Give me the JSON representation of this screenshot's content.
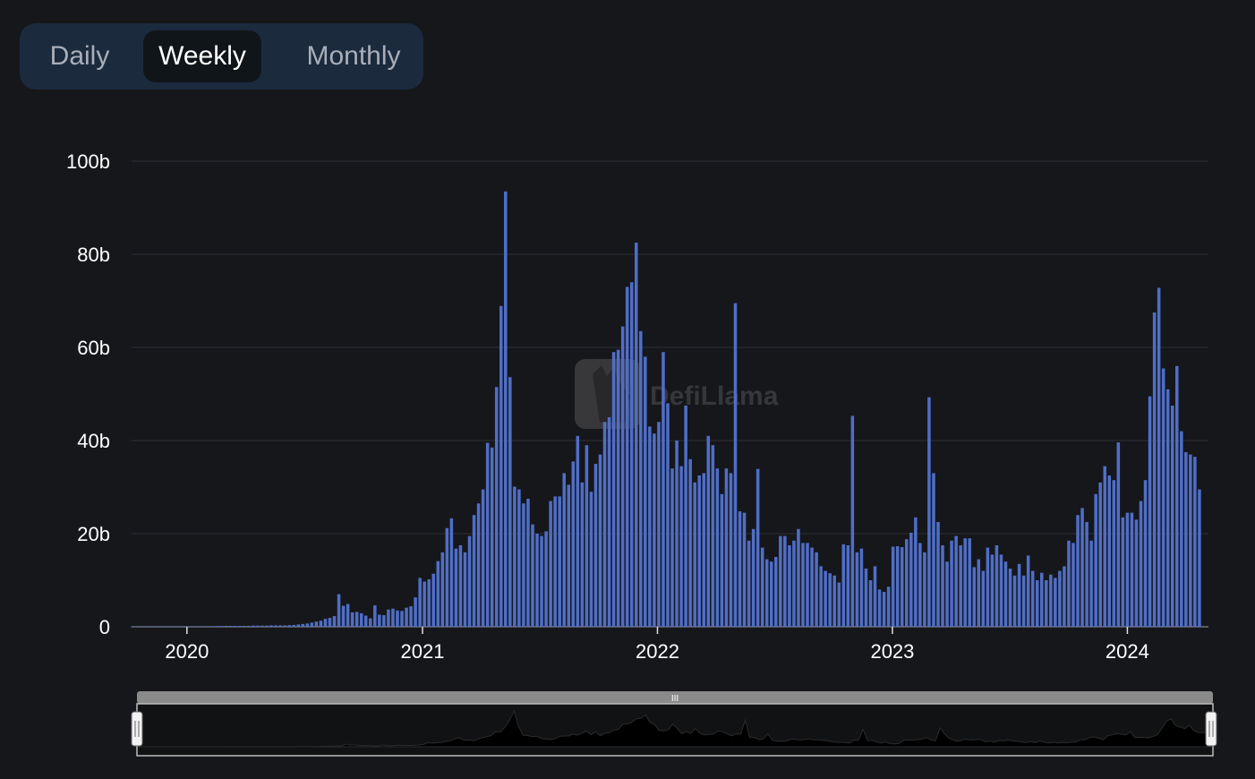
{
  "toggle": {
    "options": [
      "Daily",
      "Weekly",
      "Monthly"
    ],
    "active": "Weekly"
  },
  "watermark": "DefiLlama",
  "colors": {
    "background": "#16171b",
    "bar": "#4f6ec6",
    "grid": "#2c2f36",
    "toggle_bg": "#1c2a3e",
    "toggle_active": "#101519"
  },
  "chart_data": {
    "type": "bar",
    "title": "",
    "xlabel": "",
    "ylabel": "",
    "unit": "b",
    "start_date": "2019-10-07",
    "period": "weekly",
    "xlim": [
      "2019-10-07",
      "2024-05-06"
    ],
    "ylim": [
      0,
      100
    ],
    "yticks": [
      0,
      20,
      40,
      60,
      80,
      100
    ],
    "ytick_labels": [
      "0",
      "20b",
      "40b",
      "60b",
      "80b",
      "100b"
    ],
    "xtick_labels": [
      "2020",
      "2021",
      "2022",
      "2023",
      "2024"
    ],
    "grid": true,
    "values": [
      0.05,
      0.05,
      0.05,
      0.05,
      0.05,
      0.05,
      0.05,
      0.05,
      0.05,
      0.05,
      0.05,
      0.05,
      0.05,
      0.05,
      0.1,
      0.1,
      0.1,
      0.1,
      0.1,
      0.15,
      0.15,
      0.2,
      0.2,
      0.2,
      0.2,
      0.2,
      0.2,
      0.25,
      0.25,
      0.25,
      0.25,
      0.3,
      0.3,
      0.3,
      0.3,
      0.35,
      0.4,
      0.5,
      0.6,
      0.7,
      0.9,
      1.1,
      1.3,
      1.7,
      1.9,
      2.3,
      7.0,
      4.5,
      4.9,
      3.1,
      3.2,
      2.9,
      2.4,
      1.8,
      4.6,
      2.6,
      2.5,
      3.7,
      3.9,
      3.5,
      3.4,
      4.1,
      4.4,
      6.3,
      10.5,
      9.7,
      10.2,
      11.4,
      14.1,
      16.0,
      21.2,
      23.3,
      16.8,
      17.5,
      16.0,
      19.5,
      24.0,
      26.5,
      29.5,
      39.5,
      38.5,
      51.5,
      68.9,
      93.5,
      53.6,
      30.1,
      29.5,
      26.5,
      27.5,
      22.0,
      20.0,
      19.5,
      20.5,
      27.0,
      28.0,
      28.0,
      33.0,
      30.5,
      35.5,
      41.0,
      31.0,
      39.0,
      29.0,
      35.0,
      37.0,
      44.0,
      45.0,
      59.0,
      59.5,
      64.5,
      73.0,
      74.0,
      82.5,
      63.5,
      58.0,
      43.0,
      41.5,
      44.0,
      59.0,
      48.0,
      34.0,
      40.0,
      34.5,
      47.5,
      36.0,
      31.0,
      32.5,
      33.0,
      41.0,
      39.0,
      34.0,
      28.5,
      34.0,
      33.0,
      69.5,
      24.8,
      24.5,
      18.5,
      21.0,
      33.9,
      17.0,
      14.5,
      14.0,
      15.0,
      19.5,
      19.5,
      17.5,
      18.5,
      21.0,
      18.0,
      18.0,
      17.0,
      16.0,
      13.0,
      12.0,
      11.5,
      11.0,
      9.5,
      17.7,
      17.5,
      45.3,
      16.0,
      16.8,
      12.5,
      10.0,
      13.0,
      8.0,
      7.5,
      8.6,
      17.2,
      17.3,
      17.1,
      18.8,
      20.2,
      23.5,
      18.0,
      16.0,
      49.3,
      33.0,
      22.5,
      17.5,
      14.0,
      18.5,
      19.5,
      17.5,
      19.0,
      19.0,
      12.8,
      14.5,
      12.0,
      17.0,
      15.5,
      17.5,
      15.5,
      14.0,
      12.5,
      11.0,
      13.5,
      11.0,
      15.3,
      12.0,
      10.0,
      11.6,
      10.0,
      11.2,
      10.5,
      12.0,
      13.0,
      18.5,
      18.0,
      24.0,
      25.5,
      22.5,
      18.5,
      28.5,
      31.0,
      34.5,
      32.5,
      31.5,
      39.6,
      23.5,
      24.5,
      24.5,
      23.0,
      27.0,
      31.5,
      49.5,
      67.5,
      72.8,
      55.5,
      51.0,
      47.5,
      56.0,
      42.0,
      37.5,
      37.0,
      36.5,
      29.5
    ]
  },
  "navigator": {
    "handle_label": "III"
  }
}
